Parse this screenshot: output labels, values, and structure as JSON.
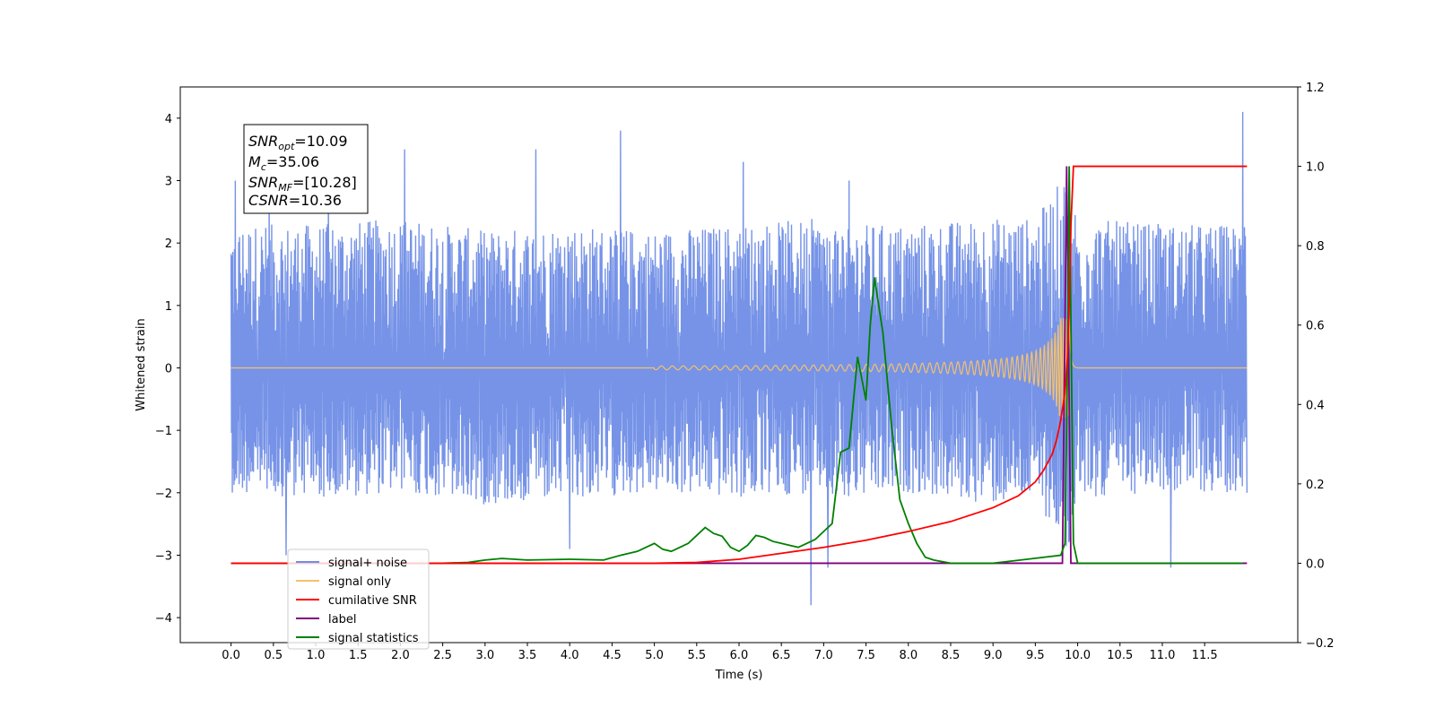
{
  "chart_data": {
    "type": "line",
    "title": "",
    "xlabel": "Time (s)",
    "ylabel_left": "Whitened strain",
    "ylabel_right": "",
    "xlim": [
      -0.6,
      12.6
    ],
    "ylim_left": [
      -4.4,
      4.5
    ],
    "ylim_right": [
      -0.2,
      1.2
    ],
    "grid": false,
    "x_ticks": [
      "0.0",
      "0.5",
      "1.0",
      "1.5",
      "2.0",
      "2.5",
      "3.0",
      "3.5",
      "4.0",
      "4.5",
      "5.0",
      "5.5",
      "6.0",
      "6.5",
      "7.0",
      "7.5",
      "8.0",
      "8.5",
      "9.0",
      "9.5",
      "10.0",
      "10.5",
      "11.0",
      "11.5"
    ],
    "y_ticks_left": [
      "4",
      "3",
      "2",
      "1",
      "0",
      "−1",
      "−2",
      "−3",
      "−4"
    ],
    "y_ticks_right": [
      "1.2",
      "1.0",
      "0.8",
      "0.6",
      "0.4",
      "0.2",
      "0.0",
      "−0.2"
    ],
    "annotation": {
      "snr_opt": "=10.09",
      "mc": "=35.06",
      "snr_mf": "=[10.28]",
      "csnr": "=10.36"
    },
    "legend_placement": "lower-left",
    "series": [
      {
        "name": "signal+ noise",
        "axis": "left",
        "color": "#6f8de6",
        "envelope_x": [
          0.0,
          1.0,
          2.0,
          3.0,
          4.0,
          5.0,
          6.0,
          7.0,
          7.5,
          8.0,
          9.0,
          9.5,
          9.9,
          10.0,
          11.0,
          12.0
        ],
        "envelope_upper": [
          2.3,
          2.3,
          2.4,
          2.2,
          2.3,
          2.2,
          2.3,
          2.4,
          2.3,
          2.3,
          2.4,
          2.4,
          3.2,
          2.4,
          2.3,
          2.3
        ],
        "envelope_lower": [
          -2.0,
          -2.1,
          -2.0,
          -2.2,
          -2.1,
          -2.0,
          -2.1,
          -2.0,
          -2.1,
          -2.0,
          -2.2,
          -2.1,
          -3.0,
          -2.1,
          -2.0,
          -2.0
        ],
        "spikes_x": [
          0.05,
          0.45,
          0.65,
          1.15,
          2.05,
          3.6,
          4.0,
          4.6,
          6.05,
          6.85,
          7.05,
          7.3,
          9.9,
          11.1,
          11.95,
          12.0
        ],
        "spikes_y": [
          3.0,
          2.9,
          -3.0,
          3.1,
          3.5,
          3.5,
          -2.9,
          3.8,
          3.3,
          -3.8,
          -3.2,
          3.0,
          3.2,
          -3.2,
          4.1,
          -2.0
        ]
      },
      {
        "name": "signal only",
        "axis": "left",
        "color": "#f5c16c",
        "chirp": {
          "start": 5.0,
          "merger": 9.9,
          "ringdown_end": 10.0,
          "amp_min": 0.03,
          "amp_max": 0.8
        }
      },
      {
        "name": "cumilative SNR",
        "axis": "right",
        "color": "#ff0000",
        "x": [
          5.0,
          5.5,
          6.0,
          6.5,
          7.0,
          7.5,
          8.0,
          8.5,
          9.0,
          9.3,
          9.5,
          9.6,
          9.7,
          9.75,
          9.8,
          9.85,
          9.88,
          9.9,
          9.92,
          9.95,
          12.0
        ],
        "values": [
          0.0,
          0.002,
          0.01,
          0.025,
          0.04,
          0.058,
          0.08,
          0.105,
          0.14,
          0.17,
          0.205,
          0.235,
          0.275,
          0.31,
          0.36,
          0.43,
          0.52,
          0.65,
          0.85,
          1.0,
          1.0
        ]
      },
      {
        "name": "label",
        "axis": "right",
        "color": "#800080",
        "x": [
          0.0,
          9.82,
          9.87,
          9.92,
          12.0
        ],
        "values": [
          0.0,
          0.0,
          1.0,
          0.0,
          0.0
        ]
      },
      {
        "name": "signal statistics",
        "axis": "right",
        "color": "#008000",
        "x": [
          0.0,
          2.5,
          2.8,
          3.0,
          3.2,
          3.5,
          4.0,
          4.4,
          4.6,
          4.8,
          5.0,
          5.1,
          5.2,
          5.4,
          5.5,
          5.6,
          5.7,
          5.8,
          5.9,
          6.0,
          6.1,
          6.2,
          6.3,
          6.4,
          6.5,
          6.6,
          6.7,
          6.8,
          6.9,
          7.0,
          7.1,
          7.2,
          7.3,
          7.4,
          7.5,
          7.55,
          7.6,
          7.7,
          7.8,
          7.9,
          8.0,
          8.1,
          8.2,
          8.3,
          8.5,
          9.0,
          9.8,
          9.85,
          9.88,
          9.9,
          9.95,
          10.0,
          11.95
        ],
        "values": [
          0.0,
          0.0,
          0.002,
          0.008,
          0.012,
          0.008,
          0.01,
          0.008,
          0.02,
          0.03,
          0.05,
          0.035,
          0.03,
          0.05,
          0.07,
          0.09,
          0.075,
          0.068,
          0.04,
          0.03,
          0.045,
          0.07,
          0.065,
          0.055,
          0.05,
          0.045,
          0.04,
          0.05,
          0.06,
          0.08,
          0.1,
          0.28,
          0.29,
          0.52,
          0.41,
          0.6,
          0.72,
          0.58,
          0.35,
          0.16,
          0.1,
          0.05,
          0.015,
          0.008,
          0.0,
          0.0,
          0.02,
          0.05,
          0.5,
          1.0,
          0.05,
          0.0,
          0.0
        ]
      }
    ]
  }
}
